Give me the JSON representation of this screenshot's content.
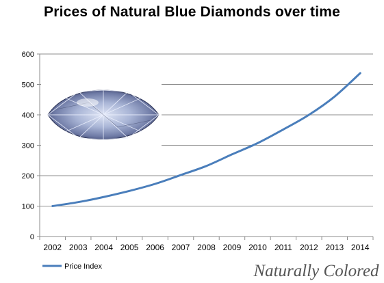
{
  "chart_data": {
    "type": "line",
    "title": "Prices of Natural Blue Diamonds over time",
    "xlabel": "",
    "ylabel": "",
    "categories": [
      "2002",
      "2003",
      "2004",
      "2005",
      "2006",
      "2007",
      "2008",
      "2009",
      "2010",
      "2011",
      "2012",
      "2013",
      "2014"
    ],
    "series": [
      {
        "name": "Price Index",
        "color": "#4a7ebb",
        "values": [
          100,
          113,
          130,
          150,
          173,
          202,
          232,
          270,
          307,
          352,
          400,
          460,
          537
        ]
      }
    ],
    "ylim": [
      0,
      600
    ],
    "yticks": [
      0,
      100,
      200,
      300,
      400,
      500,
      600
    ],
    "grid": true,
    "legend_position": "bottom-left"
  },
  "decoration": {
    "image": "marquise-blue-diamond",
    "watermark": "Naturally Colored"
  }
}
